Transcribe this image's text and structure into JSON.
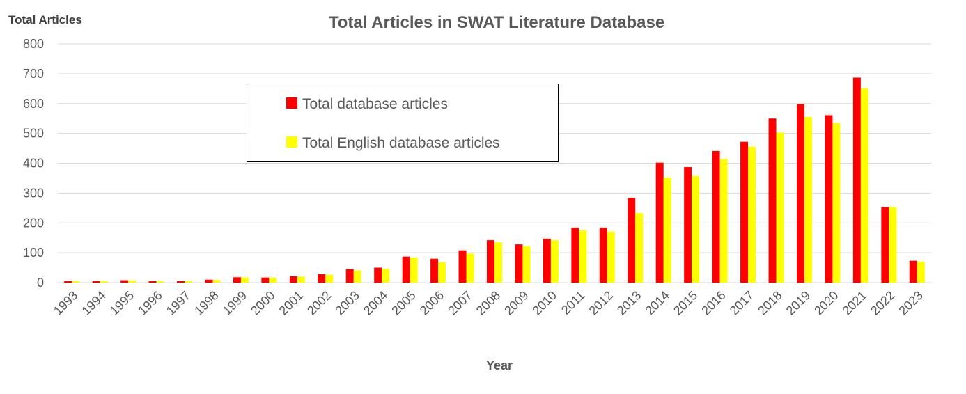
{
  "chart_data": {
    "type": "bar",
    "title": "Total Articles in SWAT Literature Database",
    "xlabel": "Year",
    "ylabel": "Total Articles",
    "ylim": [
      0,
      800
    ],
    "yticks": [
      "0",
      "100",
      "200",
      "300",
      "400",
      "500",
      "600",
      "700",
      "800"
    ],
    "categories": [
      "1993",
      "1994",
      "1995",
      "1996",
      "1997",
      "1998",
      "1999",
      "2000",
      "2001",
      "2002",
      "2003",
      "2004",
      "2005",
      "2006",
      "2007",
      "2008",
      "2009",
      "2010",
      "2011",
      "2012",
      "2013",
      "2014",
      "2015",
      "2016",
      "2017",
      "2018",
      "2019",
      "2020",
      "2021",
      "2022",
      "2023"
    ],
    "series": [
      {
        "name": "Total database articles",
        "color": "#ff0000",
        "values": [
          5,
          5,
          8,
          5,
          5,
          10,
          18,
          17,
          21,
          28,
          45,
          50,
          87,
          80,
          108,
          142,
          128,
          147,
          184,
          184,
          284,
          402,
          387,
          441,
          472,
          550,
          598,
          561,
          687,
          253,
          73
        ]
      },
      {
        "name": "Total English database articles",
        "color": "#ffff00",
        "values": [
          5,
          5,
          7,
          5,
          5,
          9,
          17,
          16,
          20,
          26,
          40,
          46,
          84,
          68,
          97,
          135,
          122,
          142,
          175,
          171,
          233,
          352,
          357,
          414,
          455,
          503,
          555,
          535,
          651,
          253,
          70
        ]
      }
    ],
    "legend_position": "top-left-inside",
    "grid": true
  }
}
